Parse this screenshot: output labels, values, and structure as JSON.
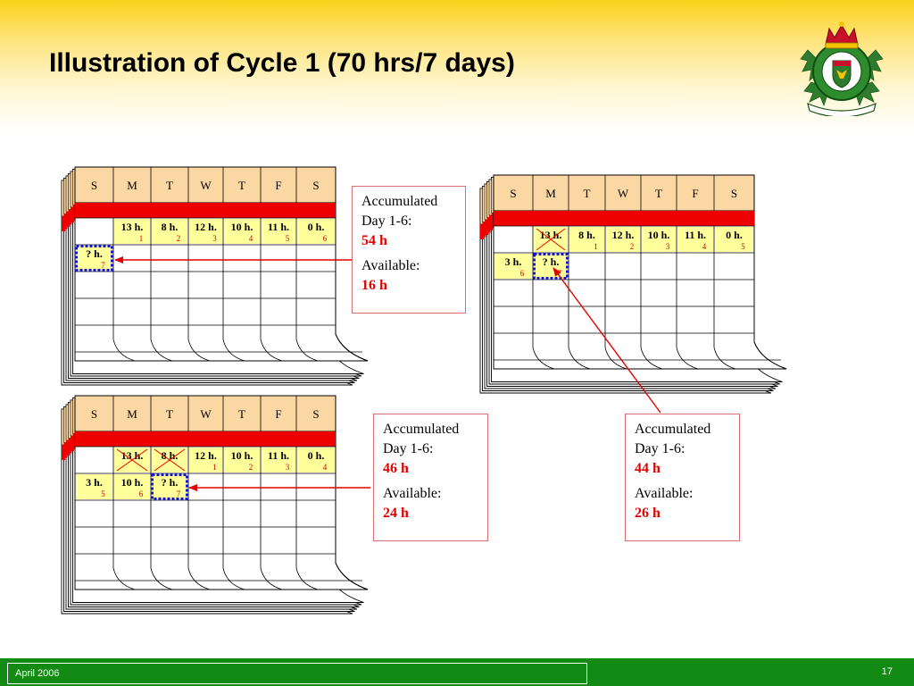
{
  "slide": {
    "title": "Illustration of Cycle 1 (70 hrs/7 days)",
    "footer_date": "April 2006",
    "page_number": "17"
  },
  "calendars": {
    "cal1": {
      "days": [
        "S",
        "M",
        "T",
        "W",
        "T",
        "F",
        "S"
      ],
      "row1": [
        {
          "hours": "13 h.",
          "day": "1"
        },
        {
          "hours": "8 h.",
          "day": "2"
        },
        {
          "hours": "12 h.",
          "day": "3"
        },
        {
          "hours": "10 h.",
          "day": "4"
        },
        {
          "hours": "11 h.",
          "day": "5"
        },
        {
          "hours": "0 h.",
          "day": "6"
        }
      ],
      "row2": [
        {
          "hours": "? h.",
          "day": "7"
        }
      ]
    },
    "cal2": {
      "days": [
        "S",
        "M",
        "T",
        "W",
        "T",
        "F",
        "S"
      ],
      "row1": [
        {
          "hours": "13 h.",
          "day": "",
          "crossed": true
        },
        {
          "hours": "8 h.",
          "day": "1"
        },
        {
          "hours": "12 h.",
          "day": "2"
        },
        {
          "hours": "10 h.",
          "day": "3"
        },
        {
          "hours": "11 h.",
          "day": "4"
        },
        {
          "hours": "0 h.",
          "day": "5"
        }
      ],
      "row2": [
        {
          "hours": "3 h.",
          "day": "6"
        },
        {
          "hours": "? h.",
          "day": "7"
        }
      ]
    },
    "cal3": {
      "days": [
        "S",
        "M",
        "T",
        "W",
        "T",
        "F",
        "S"
      ],
      "row1": [
        {
          "hours": "13 h.",
          "day": "",
          "crossed": true
        },
        {
          "hours": "8 h.",
          "day": "",
          "crossed": true
        },
        {
          "hours": "12 h.",
          "day": "1"
        },
        {
          "hours": "10 h.",
          "day": "2"
        },
        {
          "hours": "11 h.",
          "day": "3"
        },
        {
          "hours": "0 h.",
          "day": "4"
        }
      ],
      "row2": [
        {
          "hours": "3 h.",
          "day": "5"
        },
        {
          "hours": "10 h.",
          "day": "6"
        },
        {
          "hours": "? h.",
          "day": "7"
        }
      ]
    }
  },
  "boxes": {
    "box1": {
      "line1": "Accumulated",
      "line2": "Day 1-6:",
      "accumulated": "54 h",
      "available_label": "Available:",
      "available": "16 h"
    },
    "box2": {
      "line1": "Accumulated",
      "line2": "Day 1-6:",
      "accumulated": "44 h",
      "available_label": "Available:",
      "available": "26 h"
    },
    "box3": {
      "line1": "Accumulated",
      "line2": "Day 1-6:",
      "accumulated": "46 h",
      "available_label": "Available:",
      "available": "24 h"
    }
  },
  "colors": {
    "header_gold": "#fcd21a",
    "calendar_header": "#fbd7a4",
    "calendar_bar": "#ee0000",
    "calendar_cell": "#ffff9c",
    "highlight_border": "#1414c8",
    "arrow": "#e00000",
    "footer_green": "#138a13"
  }
}
